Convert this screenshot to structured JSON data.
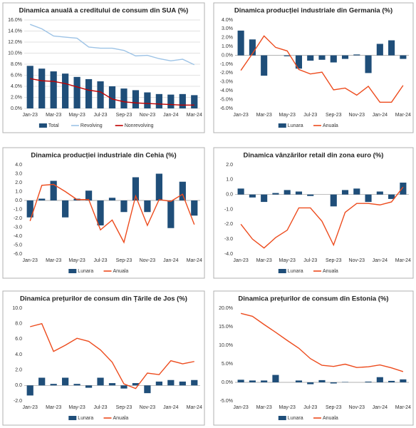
{
  "chart_data": [
    {
      "type": "combo",
      "title": "Dinamica anuală a creditului de consum din SUA (%)",
      "grid": true,
      "legend": "bottom",
      "categories": [
        "Jan-23",
        null,
        "Mar-23",
        null,
        "May-23",
        null,
        "Jul-23",
        null,
        "Sep-23",
        null,
        "Nov-23",
        null,
        "Jan-24",
        null,
        "Mar-24"
      ],
      "ylim": [
        0,
        16
      ],
      "yticks": [
        {
          "value": 0,
          "label": "0.0%"
        },
        {
          "value": 2,
          "label": "2.0%"
        },
        {
          "value": 4,
          "label": "4.0%"
        },
        {
          "value": 6,
          "label": "6.0%"
        },
        {
          "value": 8,
          "label": "8.0%"
        },
        {
          "value": 10,
          "label": "10.0%"
        },
        {
          "value": 12,
          "label": "12.0%"
        },
        {
          "value": 14,
          "label": "14.0%"
        },
        {
          "value": 16,
          "label": "16.0%"
        }
      ],
      "series": [
        {
          "name": "Total",
          "kind": "bar",
          "color": "#1f4e79",
          "values": [
            7.7,
            7.2,
            6.7,
            6.3,
            5.7,
            5.3,
            4.9,
            4.0,
            3.6,
            3.3,
            2.9,
            2.6,
            2.5,
            2.6,
            2.4
          ]
        },
        {
          "name": "Revolving",
          "kind": "line",
          "color": "#9dc3e6",
          "values": [
            15.2,
            14.4,
            13.1,
            12.9,
            12.7,
            11.1,
            10.9,
            10.9,
            10.5,
            9.5,
            9.6,
            9.0,
            8.6,
            8.9,
            7.9
          ]
        },
        {
          "name": "Nonrevolving",
          "kind": "line",
          "color": "#c00000",
          "values": [
            5.4,
            5.0,
            4.9,
            4.5,
            3.9,
            3.3,
            3.0,
            1.7,
            1.2,
            1.0,
            0.9,
            0.8,
            0.7,
            0.6,
            0.6
          ]
        }
      ]
    },
    {
      "type": "combo",
      "title": "Dinamica producției industriale din Germania (%)",
      "grid": false,
      "legend": "bottom",
      "categories": [
        "Jan-23",
        null,
        "Mar-23",
        null,
        "May-23",
        null,
        "Jul-23",
        null,
        "Sep-23",
        null,
        "Nov-23",
        null,
        "Jan-24",
        null,
        "Mar-24"
      ],
      "ylim": [
        -6,
        4
      ],
      "yticks": [
        {
          "value": -6,
          "label": "-6.0%"
        },
        {
          "value": -5,
          "label": "-5.0%"
        },
        {
          "value": -4,
          "label": "-4.0%"
        },
        {
          "value": -3,
          "label": "-3.0%"
        },
        {
          "value": -2,
          "label": "-2.0%"
        },
        {
          "value": -1,
          "label": "-1.0%"
        },
        {
          "value": 0,
          "label": "0.0%"
        },
        {
          "value": 1,
          "label": "1.0%"
        },
        {
          "value": 2,
          "label": "2.0%"
        },
        {
          "value": 3,
          "label": "3.0%"
        },
        {
          "value": 4,
          "label": "4.0%"
        }
      ],
      "series": [
        {
          "name": "Lunara",
          "kind": "bar",
          "color": "#1f4e79",
          "values": [
            2.8,
            1.8,
            -2.3,
            0.0,
            -0.1,
            -1.5,
            -0.6,
            -0.5,
            -0.8,
            -0.4,
            0.1,
            -2.0,
            1.3,
            1.7,
            -0.4
          ]
        },
        {
          "name": "Anuala",
          "kind": "line",
          "color": "#ed4b1d",
          "values": [
            -1.7,
            0.2,
            2.2,
            0.9,
            0.5,
            -1.6,
            -2.1,
            -1.9,
            -3.9,
            -3.7,
            -4.5,
            -3.5,
            -5.3,
            -5.3,
            -3.4
          ]
        }
      ]
    },
    {
      "type": "combo",
      "title": "Dinamica producției industriale din Cehia (%)",
      "grid": false,
      "legend": "bottom",
      "categories": [
        "Jan-23",
        null,
        "Mar-23",
        null,
        "May-23",
        null,
        "Jul-23",
        null,
        "Sep-23",
        null,
        "Nov-23",
        null,
        "Jan-24",
        null,
        "Mar-24"
      ],
      "ylim": [
        -6,
        4
      ],
      "yticks": [
        {
          "value": -6,
          "label": "-6.0"
        },
        {
          "value": -5,
          "label": "-5.0"
        },
        {
          "value": -4,
          "label": "-4.0"
        },
        {
          "value": -3,
          "label": "-3.0"
        },
        {
          "value": -2,
          "label": "-2.0"
        },
        {
          "value": -1,
          "label": "-1.0"
        },
        {
          "value": 0,
          "label": "0.0"
        },
        {
          "value": 1,
          "label": "1.0"
        },
        {
          "value": 2,
          "label": "2.0"
        },
        {
          "value": 3,
          "label": "3.0"
        },
        {
          "value": 4,
          "label": "4.0"
        }
      ],
      "series": [
        {
          "name": "Lunara",
          "kind": "bar",
          "color": "#1f4e79",
          "values": [
            -1.9,
            0.2,
            2.2,
            -1.9,
            0.2,
            1.1,
            -2.8,
            0.3,
            -1.3,
            2.6,
            -1.3,
            3.0,
            -3.1,
            2.1,
            -1.7
          ]
        },
        {
          "name": "Anuala",
          "kind": "line",
          "color": "#ed4b1d",
          "values": [
            -2.3,
            1.7,
            1.8,
            1.0,
            0.1,
            0.1,
            -3.3,
            -2.2,
            -4.7,
            0.5,
            -2.8,
            0.1,
            -0.1,
            0.7,
            -2.7
          ]
        }
      ]
    },
    {
      "type": "combo",
      "title": "Dinamica vânzărilor retail din zona euro (%)",
      "grid": false,
      "legend": "bottom",
      "categories": [
        "Jan-23",
        null,
        "Mar-23",
        null,
        "May-23",
        null,
        "Jul-23",
        null,
        "Sep-23",
        null,
        "Nov-23",
        null,
        "Jan-24",
        null,
        "Mar-24"
      ],
      "ylim": [
        -4,
        2
      ],
      "yticks": [
        {
          "value": -4,
          "label": "-4.0"
        },
        {
          "value": -3,
          "label": "-3.0"
        },
        {
          "value": -2,
          "label": "-2.0"
        },
        {
          "value": -1,
          "label": "-1.0"
        },
        {
          "value": 0,
          "label": "0.0"
        },
        {
          "value": 1,
          "label": "1.0"
        },
        {
          "value": 2,
          "label": "2.0"
        }
      ],
      "series": [
        {
          "name": "Lunara",
          "kind": "bar",
          "color": "#1f4e79",
          "values": [
            0.4,
            -0.2,
            -0.5,
            0.1,
            0.3,
            0.2,
            -0.1,
            0.0,
            -0.8,
            0.3,
            0.4,
            -0.5,
            0.2,
            -0.3,
            0.8
          ]
        },
        {
          "name": "Anuala",
          "kind": "line",
          "color": "#ed4b1d",
          "values": [
            -2.0,
            -3.0,
            -3.6,
            -2.9,
            -2.4,
            -0.9,
            -0.9,
            -1.8,
            -3.4,
            -1.2,
            -0.6,
            -0.6,
            -0.7,
            -0.5,
            0.5
          ]
        }
      ]
    },
    {
      "type": "combo",
      "title": "Dinamica prețurilor de consum din Țările de Jos (%)",
      "grid": false,
      "legend": "bottom",
      "categories": [
        "Jan-23",
        null,
        "Mar-23",
        null,
        "May-23",
        null,
        "Jul-23",
        null,
        "Sep-23",
        null,
        "Nov-23",
        null,
        "Jan-24",
        null,
        "Mar-24"
      ],
      "ylim": [
        -2,
        10
      ],
      "yticks": [
        {
          "value": -2,
          "label": "-2.0"
        },
        {
          "value": 0,
          "label": "0.0"
        },
        {
          "value": 2,
          "label": "2.0"
        },
        {
          "value": 4,
          "label": "4.0"
        },
        {
          "value": 6,
          "label": "6.0"
        },
        {
          "value": 8,
          "label": "8.0"
        },
        {
          "value": 10,
          "label": "10.0"
        }
      ],
      "series": [
        {
          "name": "Lunara",
          "kind": "bar",
          "color": "#1f4e79",
          "values": [
            -1.3,
            1.0,
            0.2,
            1.0,
            0.2,
            -0.3,
            1.0,
            0.3,
            -0.4,
            0.3,
            -1.0,
            0.5,
            0.7,
            0.5,
            0.7
          ]
        },
        {
          "name": "Anuala",
          "kind": "line",
          "color": "#ed4b1d",
          "values": [
            7.6,
            8.0,
            4.4,
            5.2,
            6.1,
            5.7,
            4.6,
            3.0,
            0.2,
            -0.4,
            1.6,
            1.4,
            3.2,
            2.8,
            3.1
          ]
        }
      ]
    },
    {
      "type": "combo",
      "title": "Dinamica prețurilor de consum din Estonia (%)",
      "grid": false,
      "legend": "bottom",
      "categories": [
        "Jan-23",
        null,
        "Mar-23",
        null,
        "May-23",
        null,
        "Jul-23",
        null,
        "Sep-23",
        null,
        "Nov-23",
        null,
        "Jan-24",
        null,
        "Mar-24"
      ],
      "ylim": [
        -5,
        20
      ],
      "yticks": [
        {
          "value": -5,
          "label": "-5.0%"
        },
        {
          "value": 0,
          "label": "0.0%"
        },
        {
          "value": 5,
          "label": "5.0%"
        },
        {
          "value": 10,
          "label": "10.0%"
        },
        {
          "value": 15,
          "label": "15.0%"
        },
        {
          "value": 20,
          "label": "20.0%"
        }
      ],
      "series": [
        {
          "name": "Lunara",
          "kind": "bar",
          "color": "#1f4e79",
          "values": [
            0.7,
            0.5,
            0.5,
            2.0,
            0.0,
            0.5,
            -0.5,
            0.6,
            -0.3,
            0.1,
            0.0,
            0.2,
            1.4,
            0.4,
            0.8
          ]
        },
        {
          "name": "Anuala",
          "kind": "line",
          "color": "#ed4b1d",
          "values": [
            18.6,
            17.8,
            15.6,
            13.5,
            11.3,
            9.2,
            6.4,
            4.6,
            4.3,
            4.9,
            4.0,
            4.2,
            4.7,
            3.9,
            2.9
          ]
        }
      ]
    }
  ]
}
